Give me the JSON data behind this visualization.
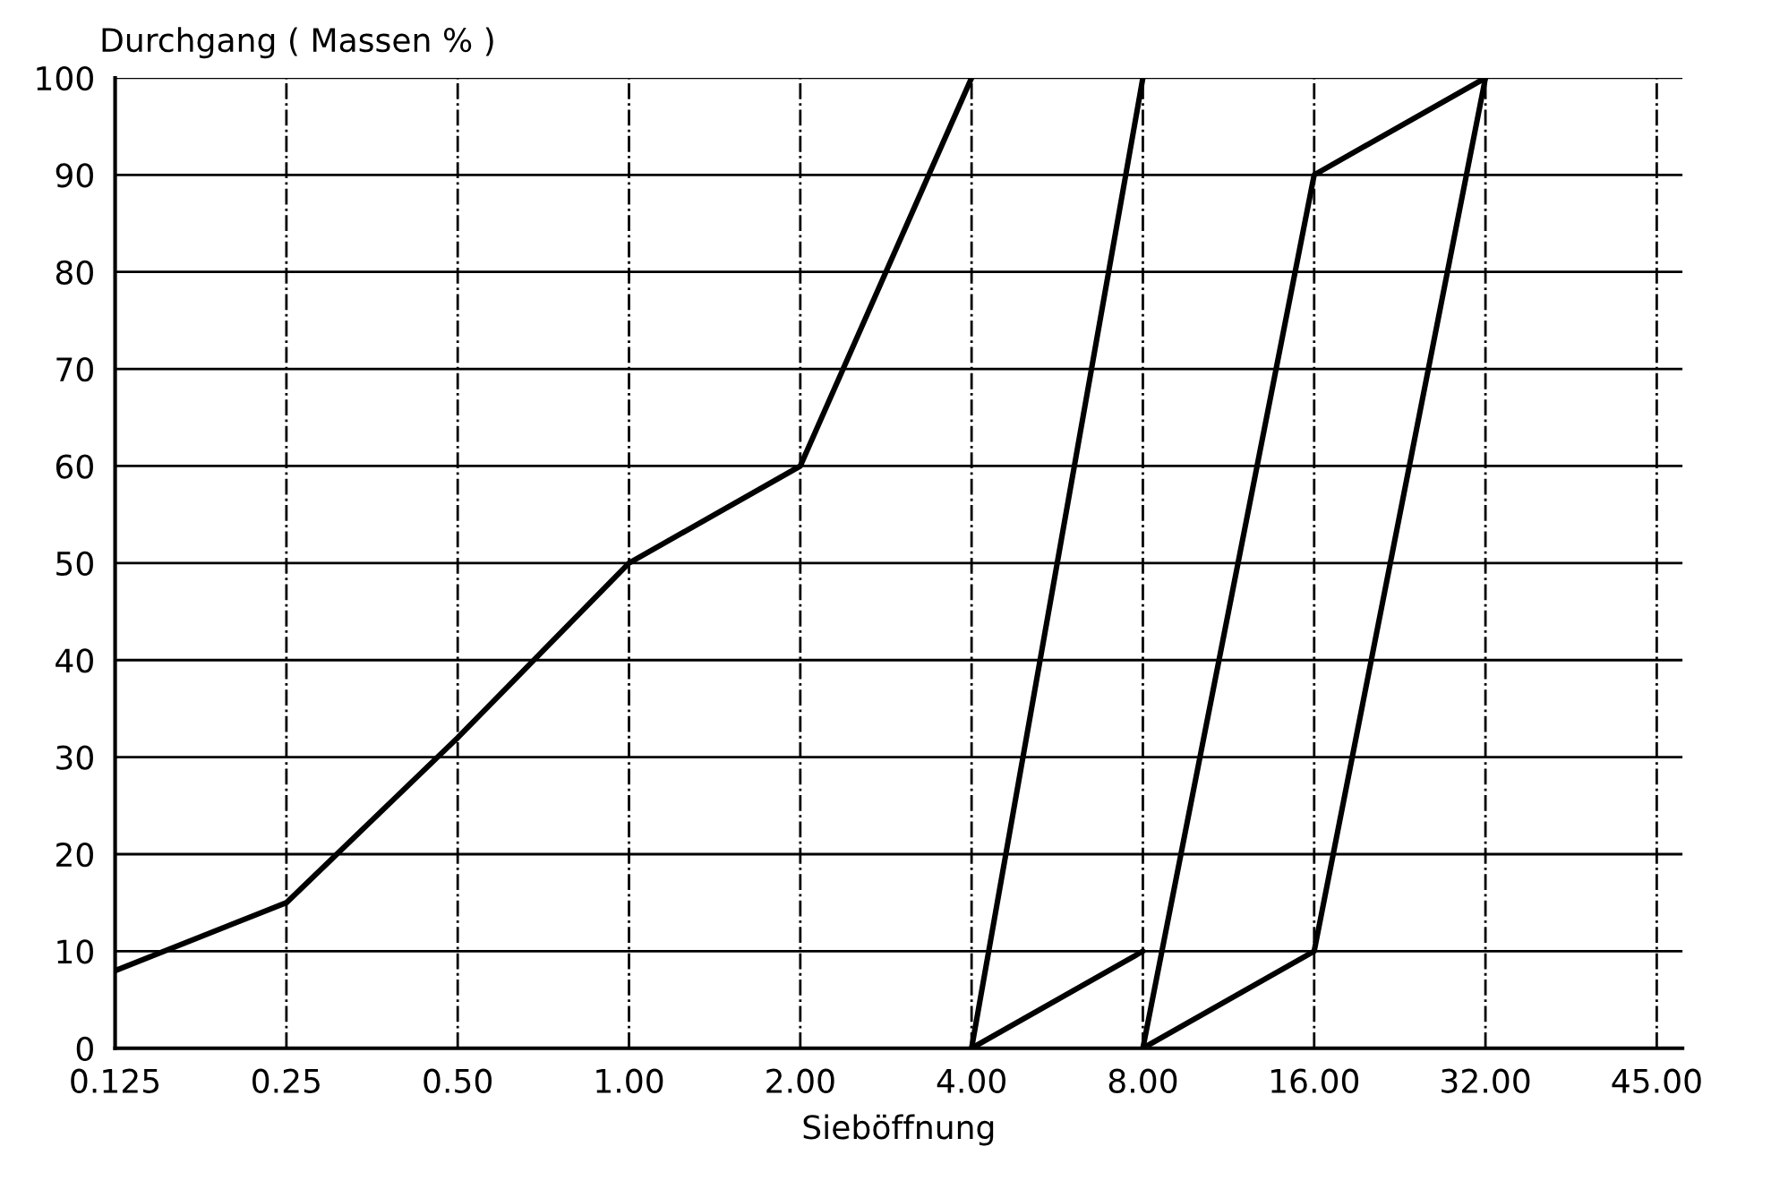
{
  "chart_data": {
    "type": "line",
    "ylabel": "Durchgang ( Massen % )",
    "xlabel": "Sieböffnung",
    "categories": [
      "0.125",
      "0.25",
      "0.50",
      "1.00",
      "2.00",
      "4.00",
      "8.00",
      "16.00",
      "32.00",
      "45.00"
    ],
    "ylim": [
      0,
      100
    ],
    "yticks": [
      0,
      10,
      20,
      30,
      40,
      50,
      60,
      70,
      80,
      90,
      100
    ],
    "grid": true,
    "marker": "none",
    "line_style": "solid",
    "series": [
      {
        "color": "#000000",
        "values": [
          8,
          15,
          32,
          50,
          60,
          100,
          null,
          null,
          null,
          null
        ]
      },
      {
        "color": "#000000",
        "values": [
          null,
          null,
          null,
          null,
          null,
          0,
          10,
          null,
          null,
          null
        ]
      },
      {
        "color": "#000000",
        "values": [
          null,
          null,
          null,
          null,
          null,
          0,
          100,
          null,
          null,
          null
        ]
      },
      {
        "color": "#000000",
        "values": [
          null,
          null,
          null,
          null,
          null,
          null,
          0,
          10,
          100,
          null
        ]
      },
      {
        "color": "#000000",
        "values": [
          null,
          null,
          null,
          null,
          null,
          null,
          0,
          90,
          100,
          null
        ]
      }
    ]
  }
}
